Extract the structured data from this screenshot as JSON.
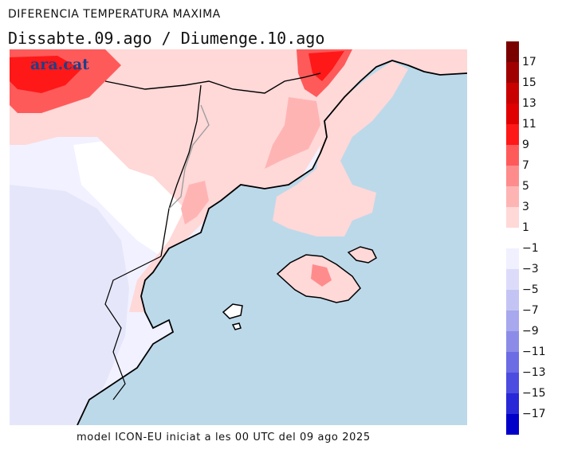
{
  "title": "DIFERENCIA TEMPERATURA MAXIMA",
  "subtitle": "Dissabte.09.ago  /  Diumenge.10.ago",
  "logo_text": "ara.cat",
  "footer": "model ICON-EU iniciat a les 00 UTC del 09 ago 2025",
  "colors": {
    "sea": "#bcd9ea",
    "land_neutral": "#ffffff",
    "coast": "#000000",
    "border": "#9a9a9a",
    "logo": "#1f3f88"
  },
  "legend": {
    "positive_labels": [
      "17",
      "15",
      "13",
      "11",
      "9",
      "7",
      "5",
      "3",
      "1"
    ],
    "negative_labels": [
      "−1",
      "−3",
      "−5",
      "−7",
      "−9",
      "−11",
      "−13",
      "−15",
      "−17"
    ],
    "positive_colors": [
      "#7a0000",
      "#a00000",
      "#c80000",
      "#e00000",
      "#ff1818",
      "#ff5a5a",
      "#ff8c8c",
      "#ffb4b4",
      "#ffd8d8"
    ],
    "negative_colors": [
      "#f0f0ff",
      "#dcdcfa",
      "#c4c4f4",
      "#a8a8ee",
      "#8c8ce8",
      "#6c6ce4",
      "#4c4ce0",
      "#2828d8",
      "#0000c8"
    ]
  }
}
